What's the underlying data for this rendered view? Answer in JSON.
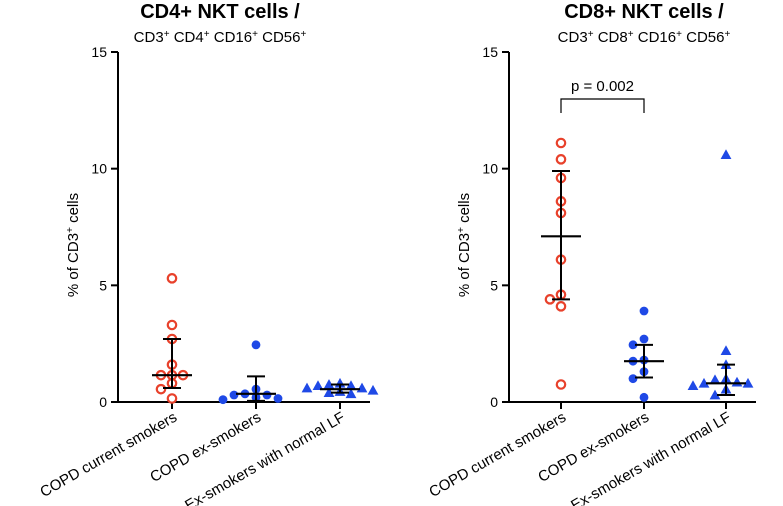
{
  "chart_data": [
    {
      "type": "scatter",
      "title": "CD4+ NKT cells /",
      "subtitle": [
        "CD3",
        "+",
        " CD4",
        "+",
        " CD16",
        "+",
        " CD56",
        "+"
      ],
      "ylabel": "% of CD3+ cells",
      "ylabel_parts": [
        "% of CD3",
        "+",
        " cells"
      ],
      "ylim": [
        0,
        15
      ],
      "yticks": [
        "0",
        "5",
        "10",
        "15"
      ],
      "categories": [
        "COPD current smokers",
        "COPD ex-smokers",
        "Ex-smokers with normal LF"
      ],
      "series": [
        {
          "name": "COPD current smokers",
          "marker": "circle-open",
          "color": "#e8412b",
          "values": [
            5.3,
            3.3,
            2.7,
            1.6,
            1.15,
            1.15,
            1.15,
            0.8,
            0.55,
            0.15
          ],
          "mean": 1.15,
          "sd_low": 0.6,
          "sd_high": 2.7
        },
        {
          "name": "COPD ex-smokers",
          "marker": "circle-filled",
          "color": "#1f49e6",
          "values": [
            2.45,
            0.55,
            0.35,
            0.3,
            0.3,
            0.2,
            0.15,
            0.1
          ],
          "mean": 0.35,
          "sd_low": 0.05,
          "sd_high": 1.1
        },
        {
          "name": "Ex-smokers with normal LF",
          "marker": "triangle-filled",
          "color": "#1f49e6",
          "values": [
            0.8,
            0.75,
            0.7,
            0.7,
            0.6,
            0.6,
            0.5,
            0.45,
            0.4,
            0.35
          ],
          "mean": 0.55,
          "sd_low": 0.4,
          "sd_high": 0.75
        }
      ]
    },
    {
      "type": "scatter",
      "title": "CD8+ NKT cells /",
      "subtitle": [
        "CD3",
        "+",
        " CD8",
        "+",
        " CD16",
        "+",
        " CD56",
        "+"
      ],
      "ylabel": "% of CD3+ cells",
      "ylabel_parts": [
        "% of CD3",
        "+",
        " cells"
      ],
      "ylim": [
        0,
        15
      ],
      "yticks": [
        "0",
        "5",
        "10",
        "15"
      ],
      "categories": [
        "COPD current smokers",
        "COPD ex-smokers",
        "Ex-smokers with normal LF"
      ],
      "annotation": {
        "text": "p = 0.002",
        "from_group": 0,
        "to_group": 1,
        "y": 13.5
      },
      "series": [
        {
          "name": "COPD current smokers",
          "marker": "circle-open",
          "color": "#e8412b",
          "values": [
            11.1,
            10.4,
            9.6,
            8.6,
            8.1,
            6.1,
            4.6,
            4.4,
            4.1,
            0.75
          ],
          "mean": 7.1,
          "sd_low": 4.4,
          "sd_high": 9.9
        },
        {
          "name": "COPD ex-smokers",
          "marker": "circle-filled",
          "color": "#1f49e6",
          "values": [
            3.9,
            2.7,
            2.45,
            1.8,
            1.75,
            1.3,
            1.0,
            0.2
          ],
          "mean": 1.75,
          "sd_low": 1.05,
          "sd_high": 2.45
        },
        {
          "name": "Ex-smokers with normal LF",
          "marker": "triangle-filled",
          "color": "#1f49e6",
          "values": [
            10.6,
            2.2,
            1.6,
            1.0,
            0.95,
            0.85,
            0.8,
            0.8,
            0.7,
            0.55,
            0.3
          ],
          "mean": 0.8,
          "sd_low": 0.3,
          "sd_high": 1.6
        }
      ]
    }
  ]
}
